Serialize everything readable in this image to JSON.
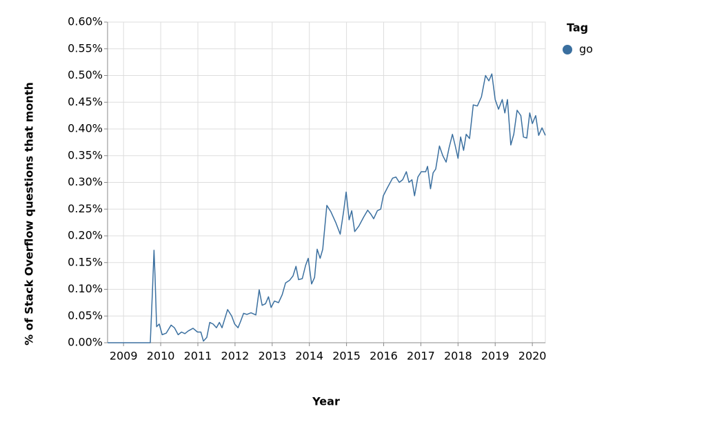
{
  "chart_data": {
    "type": "line",
    "xlabel": "Year",
    "ylabel": "% of Stack Overflow questions that month",
    "legend_title": "Tag",
    "legend": "right",
    "grid": true,
    "xlim": [
      2008.57,
      2020.35
    ],
    "xticks": [
      2009,
      2010,
      2011,
      2012,
      2013,
      2014,
      2015,
      2016,
      2017,
      2018,
      2019,
      2020
    ],
    "ylim": [
      0,
      0.6
    ],
    "yticks": [
      {
        "value": 0,
        "label": "0.00%"
      },
      {
        "value": 0.05,
        "label": "0.05%"
      },
      {
        "value": 0.1,
        "label": "0.10%"
      },
      {
        "value": 0.15,
        "label": "0.15%"
      },
      {
        "value": 0.2,
        "label": "0.20%"
      },
      {
        "value": 0.25,
        "label": "0.25%"
      },
      {
        "value": 0.3,
        "label": "0.30%"
      },
      {
        "value": 0.35,
        "label": "0.35%"
      },
      {
        "value": 0.4,
        "label": "0.40%"
      },
      {
        "value": 0.45,
        "label": "0.45%"
      },
      {
        "value": 0.5,
        "label": "0.50%"
      },
      {
        "value": 0.55,
        "label": "0.55%"
      },
      {
        "value": 0.6,
        "label": "0.60%"
      }
    ],
    "x": [
      2008.57,
      2009.72,
      2009.78,
      2009.82,
      2009.85,
      2009.89,
      2009.96,
      2010.04,
      2010.15,
      2010.28,
      2010.37,
      2010.47,
      2010.56,
      2010.65,
      2010.74,
      2010.87,
      2010.99,
      2011.08,
      2011.15,
      2011.24,
      2011.32,
      2011.41,
      2011.5,
      2011.58,
      2011.65,
      2011.8,
      2011.91,
      2011.99,
      2012.08,
      2012.15,
      2012.23,
      2012.32,
      2012.43,
      2012.56,
      2012.65,
      2012.73,
      2012.82,
      2012.9,
      2012.97,
      2013.06,
      2013.17,
      2013.27,
      2013.36,
      2013.47,
      2013.56,
      2013.64,
      2013.71,
      2013.81,
      2013.9,
      2013.97,
      2014.06,
      2014.14,
      2014.21,
      2014.29,
      2014.36,
      2014.47,
      2014.58,
      2014.71,
      2014.83,
      2014.92,
      2014.99,
      2015.07,
      2015.14,
      2015.22,
      2015.33,
      2015.46,
      2015.57,
      2015.66,
      2015.73,
      2015.83,
      2015.92,
      2015.99,
      2016.1,
      2016.24,
      2016.33,
      2016.42,
      2016.51,
      2016.61,
      2016.68,
      2016.76,
      2016.83,
      2016.92,
      2017.01,
      2017.13,
      2017.18,
      2017.26,
      2017.33,
      2017.4,
      2017.5,
      2017.59,
      2017.68,
      2017.76,
      2017.85,
      2017.92,
      2018.0,
      2018.07,
      2018.15,
      2018.22,
      2018.31,
      2018.41,
      2018.52,
      2018.63,
      2018.74,
      2018.83,
      2018.91,
      2019.0,
      2019.09,
      2019.19,
      2019.26,
      2019.33,
      2019.42,
      2019.5,
      2019.59,
      2019.69,
      2019.76,
      2019.85,
      2019.93,
      2020.0,
      2020.09,
      2020.17,
      2020.26,
      2020.35
    ],
    "series": [
      {
        "name": "go",
        "color": "#3a6f9f",
        "values": [
          0,
          0,
          0.1,
          0.173,
          0.12,
          0.03,
          0.035,
          0.015,
          0.018,
          0.033,
          0.028,
          0.015,
          0.02,
          0.017,
          0.022,
          0.027,
          0.02,
          0.02,
          0.003,
          0.01,
          0.038,
          0.035,
          0.028,
          0.038,
          0.028,
          0.062,
          0.05,
          0.035,
          0.028,
          0.04,
          0.055,
          0.053,
          0.056,
          0.052,
          0.099,
          0.07,
          0.073,
          0.086,
          0.066,
          0.078,
          0.075,
          0.09,
          0.112,
          0.117,
          0.125,
          0.143,
          0.118,
          0.12,
          0.145,
          0.158,
          0.11,
          0.122,
          0.175,
          0.158,
          0.175,
          0.257,
          0.245,
          0.225,
          0.203,
          0.245,
          0.282,
          0.23,
          0.247,
          0.208,
          0.218,
          0.235,
          0.248,
          0.24,
          0.232,
          0.247,
          0.25,
          0.275,
          0.29,
          0.308,
          0.31,
          0.3,
          0.305,
          0.32,
          0.3,
          0.305,
          0.275,
          0.31,
          0.32,
          0.32,
          0.33,
          0.288,
          0.318,
          0.325,
          0.368,
          0.35,
          0.338,
          0.365,
          0.39,
          0.37,
          0.345,
          0.385,
          0.36,
          0.39,
          0.382,
          0.445,
          0.443,
          0.46,
          0.5,
          0.49,
          0.503,
          0.455,
          0.437,
          0.455,
          0.43,
          0.455,
          0.37,
          0.39,
          0.435,
          0.425,
          0.385,
          0.383,
          0.43,
          0.41,
          0.425,
          0.388,
          0.402,
          0.388
        ]
      }
    ]
  }
}
